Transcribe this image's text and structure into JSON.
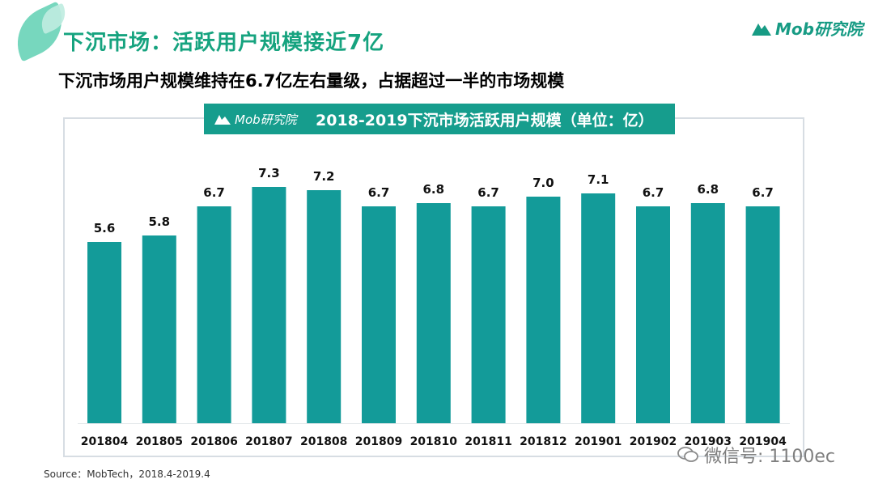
{
  "header": {
    "title": "下沉市场：活跃用户规模接近7亿",
    "logo_text": "Mob研究院",
    "subtitle": "下沉市场用户规模维持在6.7亿左右量级，占据超过一半的市场规模"
  },
  "colors": {
    "bar": "#139b99",
    "accent": "#16a37f",
    "band": "#169d8d"
  },
  "chart_data": {
    "type": "bar",
    "title": "2018-2019下沉市场活跃用户规模（单位：亿）",
    "badge": "Mob研究院",
    "categories": [
      "201804",
      "201805",
      "201806",
      "201807",
      "201808",
      "201809",
      "201810",
      "201811",
      "201812",
      "201901",
      "201902",
      "201903",
      "201904"
    ],
    "values": [
      5.6,
      5.8,
      6.7,
      7.3,
      7.2,
      6.7,
      6.8,
      6.7,
      7.0,
      7.1,
      6.7,
      6.8,
      6.7
    ],
    "value_labels": [
      "5.6",
      "5.8",
      "6.7",
      "7.3",
      "7.2",
      "6.7",
      "6.8",
      "6.7",
      "7.0",
      "7.1",
      "6.7",
      "6.8",
      "6.7"
    ],
    "xlabel": "",
    "ylabel": "",
    "grid": false,
    "legend": "none"
  },
  "footer": {
    "source": "Source：MobTech，2018.4-2019.4",
    "watermark": "微信号: 1100ec"
  }
}
